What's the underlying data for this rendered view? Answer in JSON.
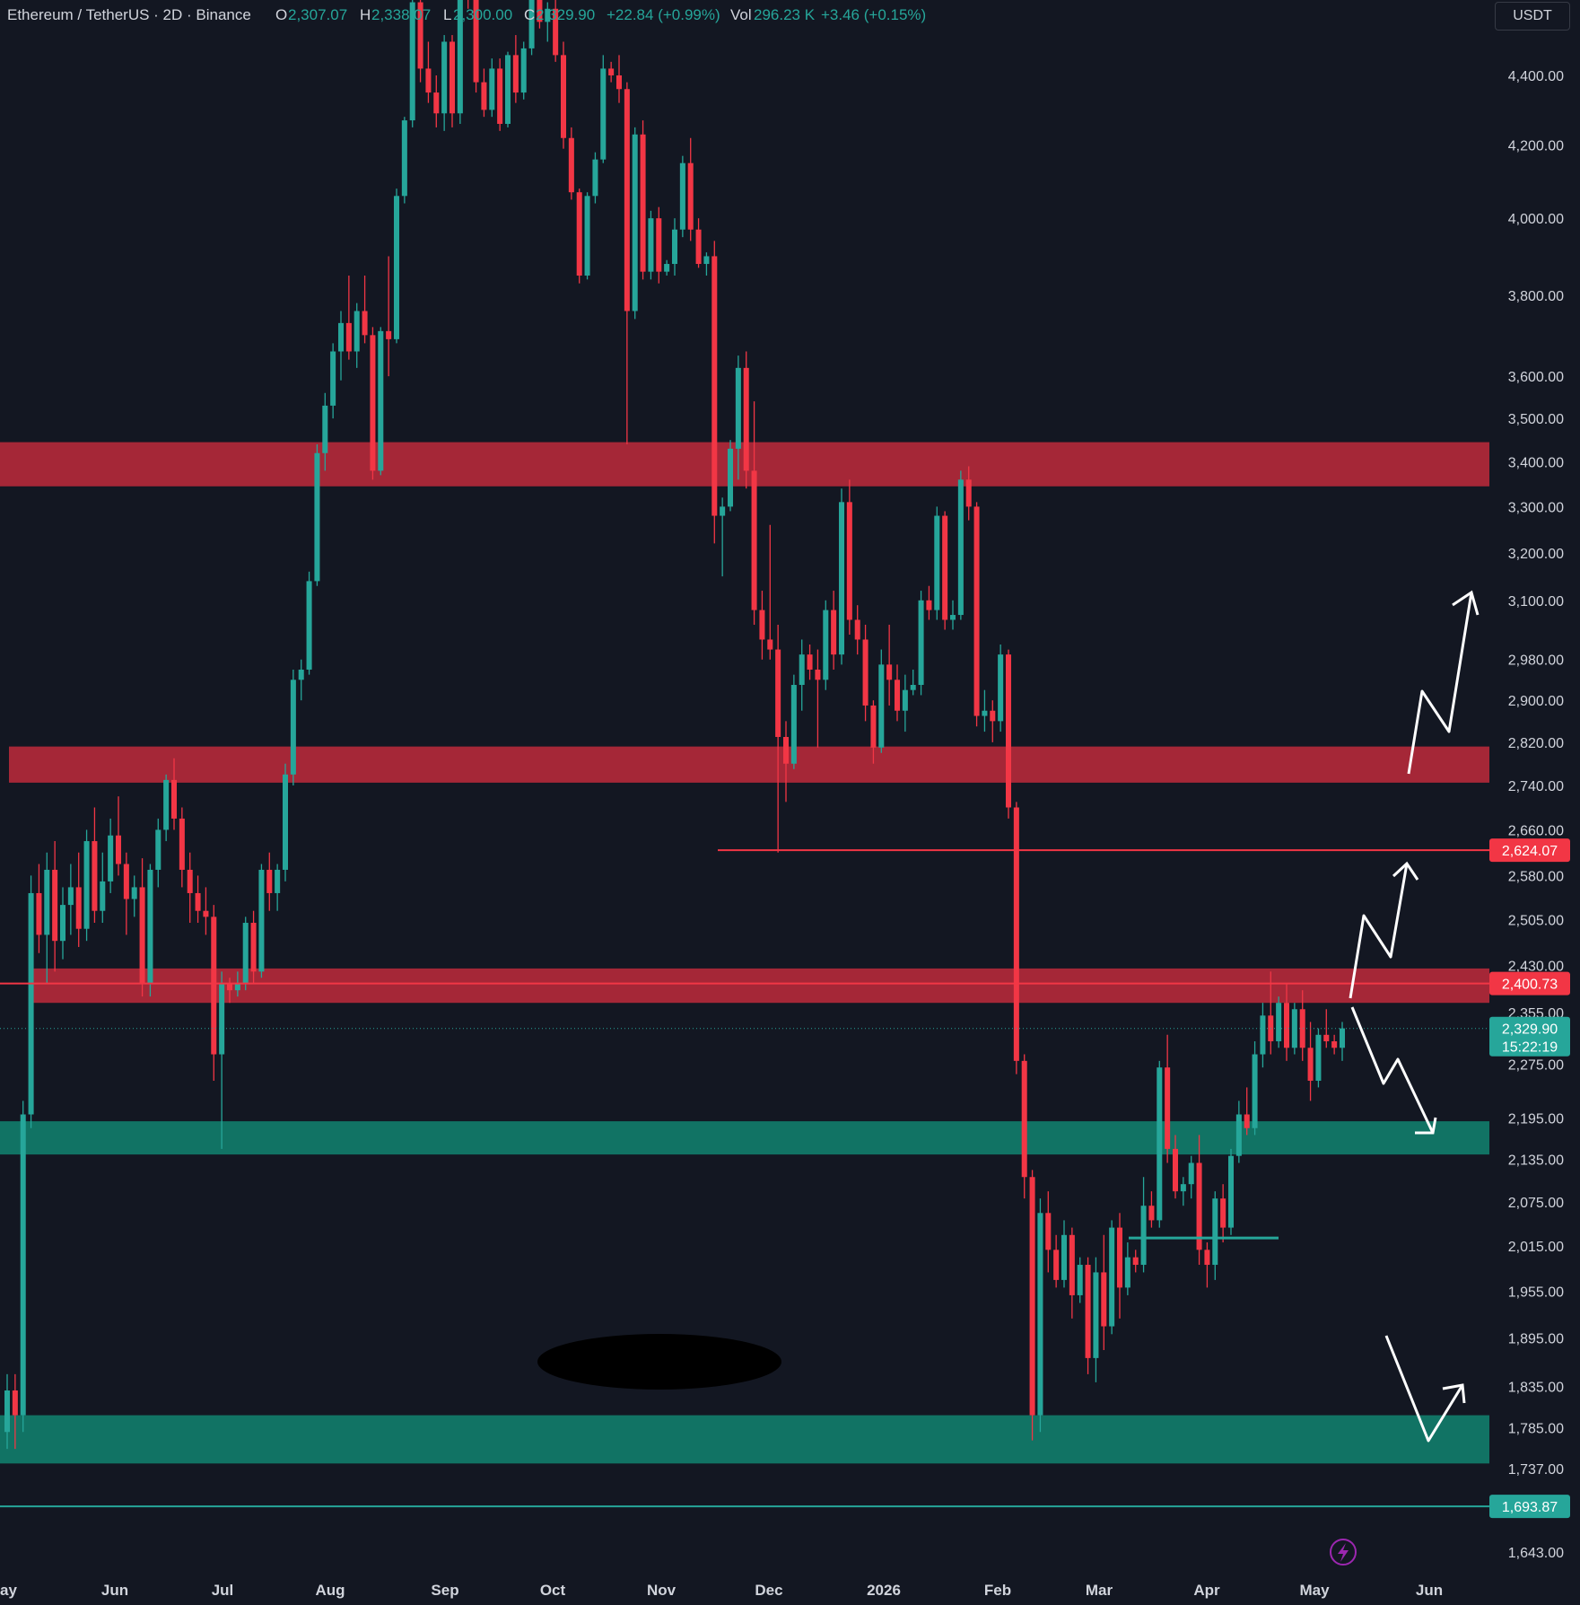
{
  "legend": {
    "symbol": "Ethereum / TetherUS · 2D · Binance",
    "o_label": "O",
    "o_value": "2,307.07",
    "h_label": "H",
    "h_value": "2,338.07",
    "l_label": "L",
    "l_value": "2,300.00",
    "c_label": "C",
    "c_value": "2,329.90",
    "change": "+22.84 (+0.99%)",
    "vol_label": "Vol",
    "vol_value": "296.23 K",
    "vol_change": "+3.46 (+0.15%)"
  },
  "currency_button": "USDT",
  "price_tags": {
    "resistance_line": "2,624.07",
    "resistance_line2": "2,400.73",
    "last_price": "2,329.90",
    "countdown": "15:22:19",
    "support_line": "1,693.87"
  },
  "colors": {
    "background": "#131722",
    "up": "#26a69a",
    "down": "#f23645",
    "red_zone": "#b2293a",
    "green_zone": "#117868",
    "arrow": "#ffffff",
    "text": "#d1d4dc"
  },
  "chart_data": {
    "type": "candlestick",
    "title": "Ethereum / TetherUS · 2D · Binance",
    "y_axis_ticks": [
      "4,400.00",
      "4,200.00",
      "4,000.00",
      "3,800.00",
      "3,600.00",
      "3,500.00",
      "3,400.00",
      "3,300.00",
      "3,200.00",
      "3,100.00",
      "2,980.00",
      "2,900.00",
      "2,820.00",
      "2,740.00",
      "2,660.00",
      "2,580.00",
      "2,505.00",
      "2,430.00",
      "2,355.00",
      "2,275.00",
      "2,195.00",
      "2,135.00",
      "2,075.00",
      "2,015.00",
      "1,955.00",
      "1,895.00",
      "1,835.00",
      "1,785.00",
      "1,737.00",
      "1,643.00"
    ],
    "x_axis_ticks": [
      "ay",
      "Jun",
      "Jul",
      "Aug",
      "Sep",
      "Oct",
      "Nov",
      "Dec",
      "2026",
      "Feb",
      "Mar",
      "Apr",
      "May",
      "Jun"
    ],
    "y_scale": "log",
    "ylim": [
      1620,
      4580
    ],
    "zones": [
      {
        "kind": "resistance",
        "low": 3345,
        "high": 3445
      },
      {
        "kind": "resistance",
        "low": 2745,
        "high": 2812
      },
      {
        "kind": "resistance",
        "low": 2370,
        "high": 2425
      },
      {
        "kind": "support",
        "low": 2142,
        "high": 2190
      },
      {
        "kind": "support",
        "low": 1743,
        "high": 1800
      }
    ],
    "horizontal_lines": [
      {
        "price": 2624.07,
        "color": "#f23645"
      },
      {
        "price": 2400.73,
        "color": "#f23645"
      },
      {
        "price": 1693.87,
        "color": "#26a69a"
      },
      {
        "price": 2026,
        "color": "#26a69a",
        "segment": true
      }
    ],
    "candles": [
      [
        1780,
        1850,
        1760,
        1830
      ],
      [
        1830,
        1850,
        1760,
        1800
      ],
      [
        1800,
        2220,
        1780,
        2200
      ],
      [
        2200,
        2580,
        2180,
        2550
      ],
      [
        2550,
        2600,
        2450,
        2480
      ],
      [
        2480,
        2620,
        2400,
        2590
      ],
      [
        2590,
        2640,
        2420,
        2470
      ],
      [
        2470,
        2560,
        2440,
        2530
      ],
      [
        2530,
        2600,
        2480,
        2560
      ],
      [
        2560,
        2620,
        2460,
        2490
      ],
      [
        2490,
        2660,
        2470,
        2640
      ],
      [
        2640,
        2700,
        2500,
        2520
      ],
      [
        2520,
        2620,
        2500,
        2570
      ],
      [
        2570,
        2680,
        2550,
        2650
      ],
      [
        2650,
        2720,
        2580,
        2600
      ],
      [
        2600,
        2620,
        2480,
        2540
      ],
      [
        2540,
        2580,
        2510,
        2560
      ],
      [
        2560,
        2610,
        2380,
        2400
      ],
      [
        2400,
        2600,
        2380,
        2590
      ],
      [
        2590,
        2680,
        2560,
        2660
      ],
      [
        2660,
        2760,
        2640,
        2750
      ],
      [
        2750,
        2790,
        2660,
        2680
      ],
      [
        2680,
        2700,
        2560,
        2590
      ],
      [
        2590,
        2620,
        2500,
        2550
      ],
      [
        2550,
        2580,
        2500,
        2520
      ],
      [
        2520,
        2560,
        2480,
        2510
      ],
      [
        2510,
        2530,
        2250,
        2290
      ],
      [
        2290,
        2420,
        2150,
        2400
      ],
      [
        2400,
        2410,
        2370,
        2390
      ],
      [
        2390,
        2420,
        2380,
        2400
      ],
      [
        2400,
        2510,
        2390,
        2500
      ],
      [
        2500,
        2520,
        2400,
        2420
      ],
      [
        2420,
        2600,
        2410,
        2590
      ],
      [
        2590,
        2620,
        2520,
        2550
      ],
      [
        2550,
        2600,
        2520,
        2590
      ],
      [
        2590,
        2780,
        2570,
        2760
      ],
      [
        2760,
        2960,
        2740,
        2940
      ],
      [
        2940,
        2980,
        2900,
        2960
      ],
      [
        2960,
        3160,
        2950,
        3140
      ],
      [
        3140,
        3440,
        3130,
        3420
      ],
      [
        3420,
        3560,
        3380,
        3530
      ],
      [
        3530,
        3680,
        3500,
        3660
      ],
      [
        3660,
        3760,
        3590,
        3730
      ],
      [
        3730,
        3850,
        3640,
        3660
      ],
      [
        3660,
        3780,
        3620,
        3760
      ],
      [
        3760,
        3850,
        3680,
        3700
      ],
      [
        3700,
        3720,
        3360,
        3380
      ],
      [
        3380,
        3720,
        3370,
        3710
      ],
      [
        3710,
        3900,
        3600,
        3690
      ],
      [
        3690,
        4080,
        3680,
        4060
      ],
      [
        4060,
        4280,
        4040,
        4270
      ],
      [
        4270,
        4650,
        4250,
        4620
      ],
      [
        4620,
        4640,
        4380,
        4420
      ],
      [
        4420,
        4500,
        4320,
        4350
      ],
      [
        4350,
        4400,
        4250,
        4290
      ],
      [
        4290,
        4520,
        4240,
        4500
      ],
      [
        4500,
        4520,
        4250,
        4290
      ],
      [
        4290,
        4700,
        4260,
        4680
      ],
      [
        4680,
        4750,
        4600,
        4650
      ],
      [
        4650,
        4680,
        4350,
        4380
      ],
      [
        4380,
        4420,
        4280,
        4300
      ],
      [
        4300,
        4450,
        4280,
        4420
      ],
      [
        4420,
        4450,
        4240,
        4260
      ],
      [
        4260,
        4470,
        4250,
        4460
      ],
      [
        4460,
        4520,
        4320,
        4350
      ],
      [
        4350,
        4500,
        4330,
        4480
      ],
      [
        4480,
        4760,
        4460,
        4730
      ],
      [
        4730,
        4750,
        4540,
        4560
      ],
      [
        4560,
        4620,
        4500,
        4600
      ],
      [
        4600,
        4640,
        4440,
        4460
      ],
      [
        4460,
        4500,
        4190,
        4220
      ],
      [
        4220,
        4250,
        4050,
        4070
      ],
      [
        4070,
        4080,
        3830,
        3850
      ],
      [
        3850,
        4070,
        3840,
        4060
      ],
      [
        4060,
        4180,
        4040,
        4160
      ],
      [
        4160,
        4460,
        4150,
        4420
      ],
      [
        4420,
        4440,
        4380,
        4400
      ],
      [
        4400,
        4460,
        4320,
        4360
      ],
      [
        4360,
        4380,
        3440,
        3760
      ],
      [
        3760,
        4250,
        3740,
        4230
      ],
      [
        4230,
        4270,
        3840,
        3860
      ],
      [
        3860,
        4020,
        3840,
        4000
      ],
      [
        4000,
        4030,
        3830,
        3860
      ],
      [
        3860,
        3890,
        3850,
        3880
      ],
      [
        3880,
        4000,
        3850,
        3970
      ],
      [
        3970,
        4170,
        3950,
        4150
      ],
      [
        4150,
        4220,
        3940,
        3970
      ],
      [
        3970,
        4000,
        3870,
        3880
      ],
      [
        3880,
        3910,
        3850,
        3900
      ],
      [
        3900,
        3940,
        3220,
        3280
      ],
      [
        3280,
        3320,
        3150,
        3300
      ],
      [
        3300,
        3450,
        3290,
        3430
      ],
      [
        3430,
        3650,
        3360,
        3620
      ],
      [
        3620,
        3660,
        3340,
        3380
      ],
      [
        3380,
        3540,
        3050,
        3080
      ],
      [
        3080,
        3120,
        2980,
        3020
      ],
      [
        3020,
        3260,
        2980,
        3000
      ],
      [
        3000,
        3050,
        2620,
        2830
      ],
      [
        2830,
        2860,
        2710,
        2780
      ],
      [
        2780,
        2950,
        2770,
        2930
      ],
      [
        2930,
        3020,
        2880,
        2990
      ],
      [
        2990,
        3010,
        2940,
        2960
      ],
      [
        2960,
        3000,
        2810,
        2940
      ],
      [
        2940,
        3100,
        2920,
        3080
      ],
      [
        3080,
        3120,
        2960,
        2990
      ],
      [
        2990,
        3340,
        2970,
        3310
      ],
      [
        3310,
        3360,
        3030,
        3060
      ],
      [
        3060,
        3090,
        2990,
        3020
      ],
      [
        3020,
        3050,
        2860,
        2890
      ],
      [
        2890,
        2900,
        2780,
        2810
      ],
      [
        2810,
        3000,
        2800,
        2970
      ],
      [
        2970,
        3050,
        2890,
        2940
      ],
      [
        2940,
        2970,
        2860,
        2880
      ],
      [
        2880,
        2950,
        2840,
        2920
      ],
      [
        2920,
        2960,
        2910,
        2930
      ],
      [
        2930,
        3120,
        2910,
        3100
      ],
      [
        3100,
        3130,
        3060,
        3080
      ],
      [
        3080,
        3300,
        3060,
        3280
      ],
      [
        3280,
        3290,
        3040,
        3060
      ],
      [
        3060,
        3100,
        3040,
        3070
      ],
      [
        3070,
        3380,
        3060,
        3360
      ],
      [
        3360,
        3390,
        3270,
        3300
      ],
      [
        3300,
        3310,
        2850,
        2870
      ],
      [
        2870,
        2920,
        2840,
        2880
      ],
      [
        2880,
        2900,
        2820,
        2860
      ],
      [
        2860,
        3010,
        2840,
        2990
      ],
      [
        2990,
        3000,
        2680,
        2700
      ],
      [
        2700,
        2710,
        2260,
        2280
      ],
      [
        2280,
        2290,
        2080,
        2110
      ],
      [
        2110,
        2120,
        1770,
        1800
      ],
      [
        1800,
        2080,
        1780,
        2060
      ],
      [
        2060,
        2090,
        1980,
        2010
      ],
      [
        2010,
        2030,
        1960,
        1970
      ],
      [
        1970,
        2050,
        1960,
        2030
      ],
      [
        2030,
        2040,
        1920,
        1950
      ],
      [
        1950,
        2000,
        1940,
        1990
      ],
      [
        1990,
        2000,
        1850,
        1870
      ],
      [
        1870,
        2000,
        1840,
        1980
      ],
      [
        1980,
        2030,
        1880,
        1910
      ],
      [
        1910,
        2050,
        1900,
        2040
      ],
      [
        2040,
        2060,
        1920,
        1960
      ],
      [
        1960,
        2020,
        1950,
        2000
      ],
      [
        2000,
        2010,
        1980,
        1990
      ],
      [
        1990,
        2110,
        1980,
        2070
      ],
      [
        2070,
        2090,
        2040,
        2050
      ],
      [
        2050,
        2280,
        2040,
        2270
      ],
      [
        2270,
        2320,
        2130,
        2150
      ],
      [
        2150,
        2170,
        2080,
        2090
      ],
      [
        2090,
        2110,
        2070,
        2100
      ],
      [
        2100,
        2140,
        2080,
        2130
      ],
      [
        2130,
        2170,
        1990,
        2010
      ],
      [
        2010,
        2020,
        1960,
        1990
      ],
      [
        1990,
        2090,
        1970,
        2080
      ],
      [
        2080,
        2100,
        2020,
        2040
      ],
      [
        2040,
        2150,
        2030,
        2140
      ],
      [
        2140,
        2220,
        2130,
        2200
      ],
      [
        2200,
        2240,
        2170,
        2180
      ],
      [
        2180,
        2310,
        2170,
        2290
      ],
      [
        2290,
        2370,
        2270,
        2350
      ],
      [
        2350,
        2420,
        2290,
        2310
      ],
      [
        2310,
        2380,
        2300,
        2370
      ],
      [
        2370,
        2400,
        2280,
        2300
      ],
      [
        2300,
        2370,
        2290,
        2360
      ],
      [
        2360,
        2390,
        2280,
        2300
      ],
      [
        2300,
        2340,
        2220,
        2250
      ],
      [
        2250,
        2330,
        2240,
        2320
      ],
      [
        2320,
        2360,
        2300,
        2310
      ],
      [
        2310,
        2320,
        2290,
        2300
      ],
      [
        2300,
        2340,
        2280,
        2330
      ]
    ]
  }
}
